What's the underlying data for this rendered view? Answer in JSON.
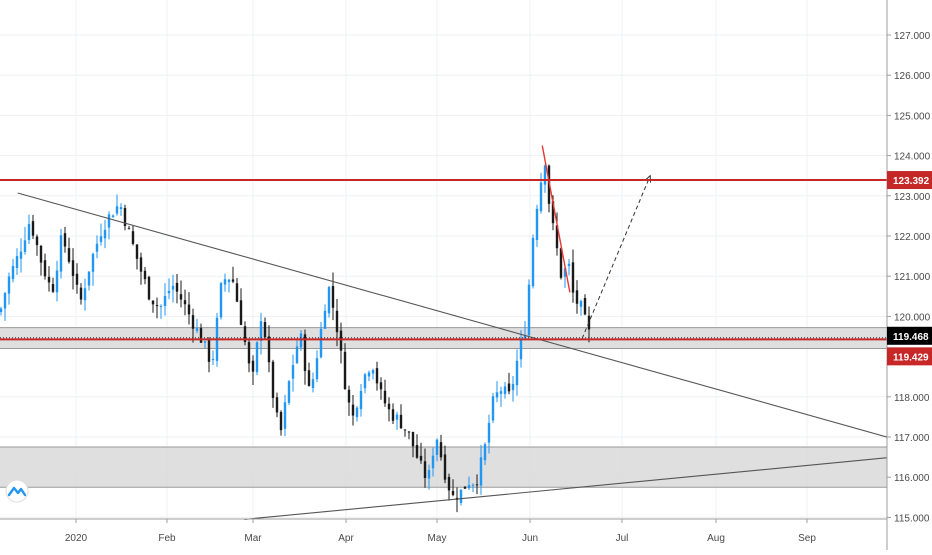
{
  "chart_data": {
    "type": "candlestick",
    "price_scale": {
      "ylim": [
        114.95,
        127.8
      ],
      "ticks": [
        "127.000",
        "126.000",
        "125.000",
        "124.000",
        "123.000",
        "122.000",
        "121.000",
        "120.000",
        "118.000",
        "117.000",
        "116.000",
        "115.000"
      ]
    },
    "time_axis": {
      "labels": [
        "2020",
        "Feb",
        "Mar",
        "Apr",
        "May",
        "Jun",
        "Jul",
        "Aug",
        "Sep"
      ]
    },
    "horizontal_levels": [
      {
        "value": 123.392,
        "label": "123.392",
        "color": "#c62828"
      },
      {
        "value": 119.429,
        "label": "119.429",
        "color": "#c62828"
      }
    ],
    "current_price": {
      "value": 119.468,
      "label": "119.468"
    },
    "zones": [
      {
        "from": 119.2,
        "to": 119.72
      },
      {
        "from": 115.75,
        "to": 116.75
      }
    ],
    "trendlines": [
      {
        "from": {
          "x": "Dec 12",
          "y": 123.07
        },
        "to": {
          "x": "Sep 30",
          "y": 116.95
        }
      },
      {
        "from": {
          "x": "Feb 28",
          "y": 114.95
        },
        "to": {
          "x": "Sep 30",
          "y": 116.5
        }
      }
    ],
    "projection": {
      "from": {
        "x": "Jun 18",
        "y": 119.45
      },
      "to": {
        "x": "Jul 10",
        "y": 123.5
      }
    },
    "down_move": {
      "from": {
        "x": "Jun 5",
        "y": 124.15
      },
      "to": {
        "x": "Jun 14",
        "y": 120.6
      }
    },
    "colors": {
      "up": "#2196f3",
      "down": "#1a1a1a",
      "level": "#c62828",
      "zone": "#dcdcdc"
    }
  }
}
